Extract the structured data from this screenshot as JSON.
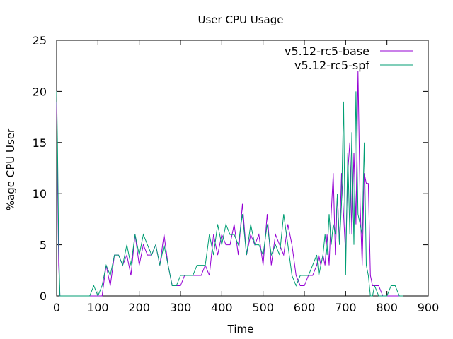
{
  "chart_data": {
    "type": "line",
    "title": "User CPU Usage",
    "xlabel": "Time",
    "ylabel": "%age CPU User",
    "xlim": [
      0,
      900
    ],
    "ylim": [
      0,
      25
    ],
    "xticks": [
      0,
      100,
      200,
      300,
      400,
      500,
      600,
      700,
      800,
      900
    ],
    "yticks": [
      0,
      5,
      10,
      15,
      20,
      25
    ],
    "grid": false,
    "legend_position": "top-right",
    "series": [
      {
        "name": "v5.12-rc5-base",
        "color": "#9400d3",
        "x": [
          0,
          2,
          5,
          8,
          10,
          15,
          50,
          80,
          90,
          100,
          110,
          120,
          130,
          140,
          150,
          160,
          170,
          180,
          190,
          200,
          210,
          220,
          230,
          240,
          250,
          260,
          270,
          280,
          290,
          300,
          310,
          320,
          330,
          340,
          350,
          360,
          370,
          380,
          390,
          400,
          410,
          420,
          430,
          440,
          450,
          460,
          470,
          480,
          490,
          500,
          510,
          520,
          530,
          540,
          550,
          560,
          570,
          580,
          590,
          600,
          610,
          620,
          630,
          635,
          640,
          645,
          650,
          655,
          660,
          665,
          670,
          675,
          680,
          685,
          690,
          695,
          700,
          705,
          710,
          715,
          720,
          725,
          730,
          735,
          740,
          745,
          750,
          755,
          760,
          765,
          770,
          780,
          790,
          800,
          810,
          820,
          830,
          840
        ],
        "y": [
          19,
          12,
          3,
          0,
          0,
          0,
          0,
          0,
          0,
          0,
          0,
          3,
          1,
          4,
          4,
          3,
          4,
          2,
          6,
          3,
          5,
          4,
          4,
          5,
          3,
          6,
          3,
          1,
          1,
          1,
          2,
          2,
          2,
          2,
          2,
          3,
          2,
          6,
          4,
          6,
          5,
          5,
          7,
          4,
          9,
          4,
          6,
          5,
          6,
          3,
          8,
          3,
          6,
          5,
          4,
          7,
          5,
          2,
          1,
          1,
          2,
          2,
          3,
          4,
          3,
          4,
          3,
          6,
          3,
          8,
          12,
          4,
          10,
          5,
          12,
          8,
          4,
          12,
          15,
          6,
          14,
          7,
          22,
          9,
          3,
          12,
          11,
          11,
          2,
          1,
          1,
          1,
          0,
          0,
          0,
          0,
          0,
          0
        ]
      },
      {
        "name": "v5.12-rc5-spf",
        "color": "#009e73",
        "x": [
          0,
          2,
          5,
          8,
          10,
          15,
          50,
          80,
          90,
          100,
          110,
          120,
          130,
          140,
          150,
          160,
          170,
          180,
          190,
          200,
          210,
          220,
          230,
          240,
          250,
          260,
          270,
          280,
          290,
          300,
          310,
          320,
          330,
          340,
          350,
          360,
          370,
          380,
          390,
          400,
          410,
          420,
          430,
          440,
          450,
          460,
          470,
          480,
          490,
          500,
          510,
          520,
          530,
          540,
          550,
          560,
          570,
          580,
          590,
          600,
          610,
          620,
          630,
          635,
          640,
          645,
          650,
          655,
          660,
          665,
          670,
          675,
          680,
          685,
          690,
          695,
          700,
          705,
          710,
          715,
          720,
          725,
          730,
          735,
          740,
          745,
          750,
          755,
          760,
          765,
          770,
          780,
          790,
          800,
          810,
          820,
          830,
          840
        ],
        "y": [
          20,
          15,
          5,
          0,
          0,
          0,
          0,
          0,
          1,
          0,
          1,
          3,
          2,
          4,
          4,
          3,
          5,
          3,
          6,
          4,
          6,
          5,
          4,
          5,
          3,
          5,
          3,
          1,
          1,
          2,
          2,
          2,
          2,
          3,
          3,
          3,
          6,
          4,
          7,
          5,
          7,
          6,
          6,
          5,
          8,
          4,
          7,
          5,
          5,
          4,
          7,
          4,
          5,
          4,
          8,
          5,
          2,
          1,
          2,
          2,
          2,
          3,
          4,
          2,
          3,
          4,
          6,
          4,
          8,
          5,
          7,
          6,
          10,
          5,
          9,
          19,
          2,
          14,
          6,
          16,
          5,
          20,
          8,
          7,
          6,
          15,
          3,
          2,
          0,
          0,
          1,
          0,
          0,
          0,
          1,
          1,
          0,
          0
        ]
      }
    ]
  }
}
